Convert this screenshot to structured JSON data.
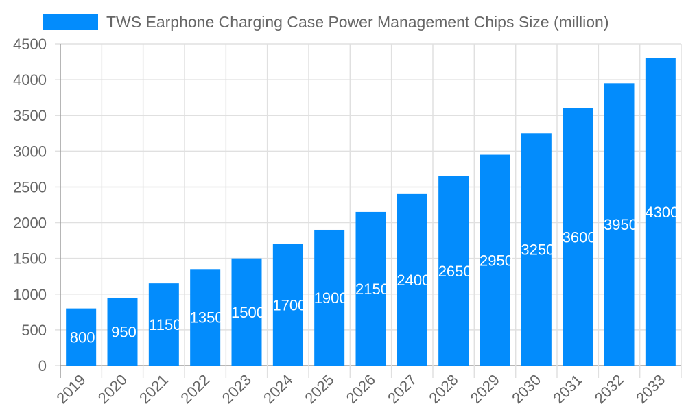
{
  "chart_data": {
    "type": "bar",
    "legend": {
      "label": "TWS Earphone Charging Case Power Management Chips Size (million)",
      "placement": "top"
    },
    "categories": [
      "2019",
      "2020",
      "2021",
      "2022",
      "2023",
      "2024",
      "2025",
      "2026",
      "2027",
      "2028",
      "2029",
      "2030",
      "2031",
      "2032",
      "2033"
    ],
    "series": [
      {
        "name": "TWS Earphone Charging Case Power Management Chips Size (million)",
        "values": [
          800,
          950,
          1150,
          1350,
          1500,
          1700,
          1900,
          2150,
          2400,
          2650,
          2950,
          3250,
          3600,
          3950,
          4300
        ]
      }
    ],
    "ylim": [
      0,
      4500
    ],
    "yticks": [
      0,
      500,
      1000,
      1500,
      2000,
      2500,
      3000,
      3500,
      4000,
      4500
    ],
    "grid": true,
    "data_labels": true,
    "colors": {
      "bar": "#038cfc",
      "grid": "#e0e0e0",
      "axis": "#9e9e9e",
      "text": "#666666",
      "label": "#ffffff"
    }
  }
}
